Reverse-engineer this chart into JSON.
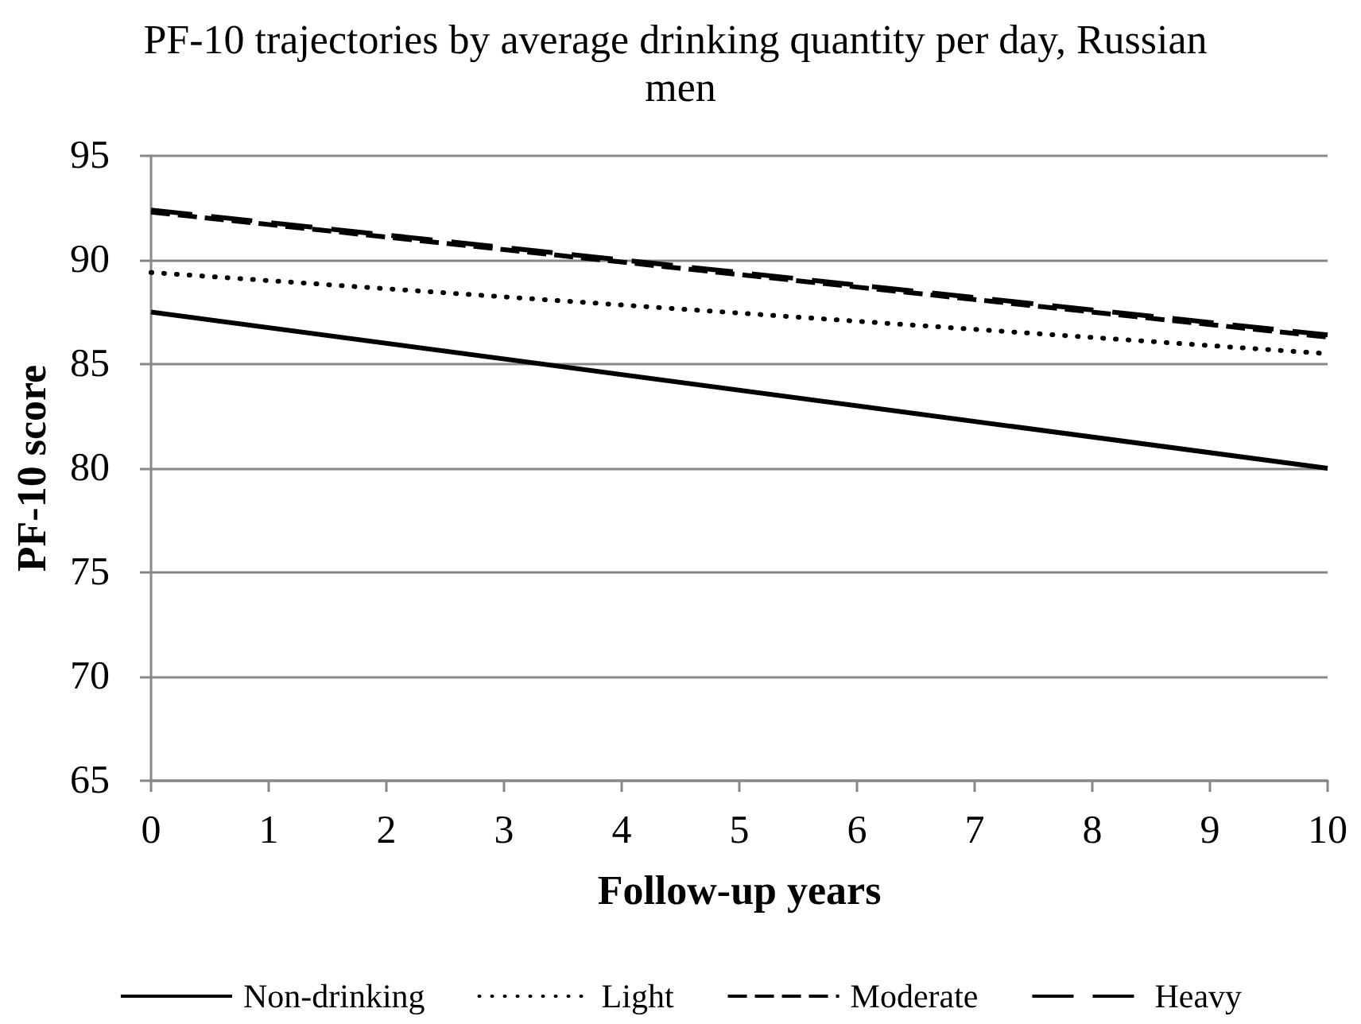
{
  "chart_data": {
    "type": "line",
    "title": "PF-10 trajectories by average drinking quantity per day, Russian men",
    "xlabel": "Follow-up years",
    "ylabel": "PF-10 score",
    "x": [
      0,
      10
    ],
    "series": [
      {
        "name": "Non-drinking",
        "color": "#000000",
        "line_style": "solid",
        "values": [
          87.5,
          80.0
        ]
      },
      {
        "name": "Light",
        "color": "#000000",
        "line_style": "dotted",
        "values": [
          89.4,
          85.5
        ]
      },
      {
        "name": "Moderate",
        "color": "#000000",
        "line_style": "dashed",
        "values": [
          92.3,
          86.3
        ]
      },
      {
        "name": "Heavy",
        "color": "#000000",
        "line_style": "dashed",
        "values": [
          92.4,
          86.4
        ]
      }
    ],
    "xlim": [
      0,
      10
    ],
    "xticks": [
      0,
      1,
      2,
      3,
      4,
      5,
      6,
      7,
      8,
      9,
      10
    ],
    "ylim": [
      65,
      95
    ],
    "yticks": [
      65,
      70,
      75,
      80,
      85,
      90,
      95
    ],
    "grid": "y",
    "legend": "bottom",
    "marker": "none"
  }
}
